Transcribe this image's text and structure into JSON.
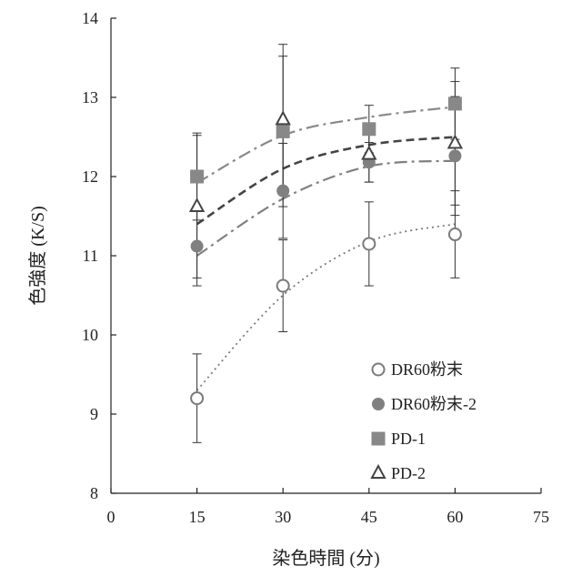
{
  "chart_data": {
    "type": "scatter",
    "xlabel": "染色時間 (分)",
    "ylabel": "色強度 (K/S)",
    "xlim": [
      0,
      75
    ],
    "ylim": [
      8,
      14
    ],
    "xticks": [
      0,
      15,
      30,
      45,
      60,
      75
    ],
    "yticks": [
      8,
      9,
      10,
      11,
      12,
      13,
      14
    ],
    "grid": false,
    "legend": "bottom-right",
    "x": [
      15,
      30,
      45,
      60
    ],
    "series": [
      {
        "name": "DR60粉末",
        "marker": "circle-open",
        "color": "#7a7a7a",
        "line_style": "dotted",
        "values": [
          9.2,
          10.62,
          11.15,
          11.27
        ],
        "error": [
          0.56,
          0.58,
          0.53,
          0.55
        ],
        "trend": [
          9.3,
          10.5,
          11.18,
          11.4
        ]
      },
      {
        "name": "DR60粉末-2",
        "marker": "circle-filled",
        "color": "#808080",
        "line_style": "dash-dot",
        "values": [
          11.12,
          11.82,
          12.18,
          12.26
        ],
        "error": [
          0.5,
          0.6,
          0.25,
          0.75
        ],
        "trend": [
          11.0,
          11.72,
          12.13,
          12.2
        ]
      },
      {
        "name": "PD-1",
        "marker": "square-filled",
        "color": "#888888",
        "line_style": "dash-dot",
        "values": [
          12.0,
          12.57,
          12.6,
          12.92
        ],
        "error": [
          0.55,
          0.95,
          0.3,
          0.45
        ],
        "trend": [
          11.92,
          12.52,
          12.75,
          12.88
        ]
      },
      {
        "name": "PD-2",
        "marker": "triangle-open",
        "color": "#444444",
        "line_style": "dashed",
        "values": [
          11.62,
          12.72,
          12.28,
          12.42
        ],
        "error": [
          0.9,
          0.95,
          0.35,
          0.78
        ],
        "trend": [
          11.4,
          12.1,
          12.4,
          12.5
        ]
      }
    ]
  }
}
